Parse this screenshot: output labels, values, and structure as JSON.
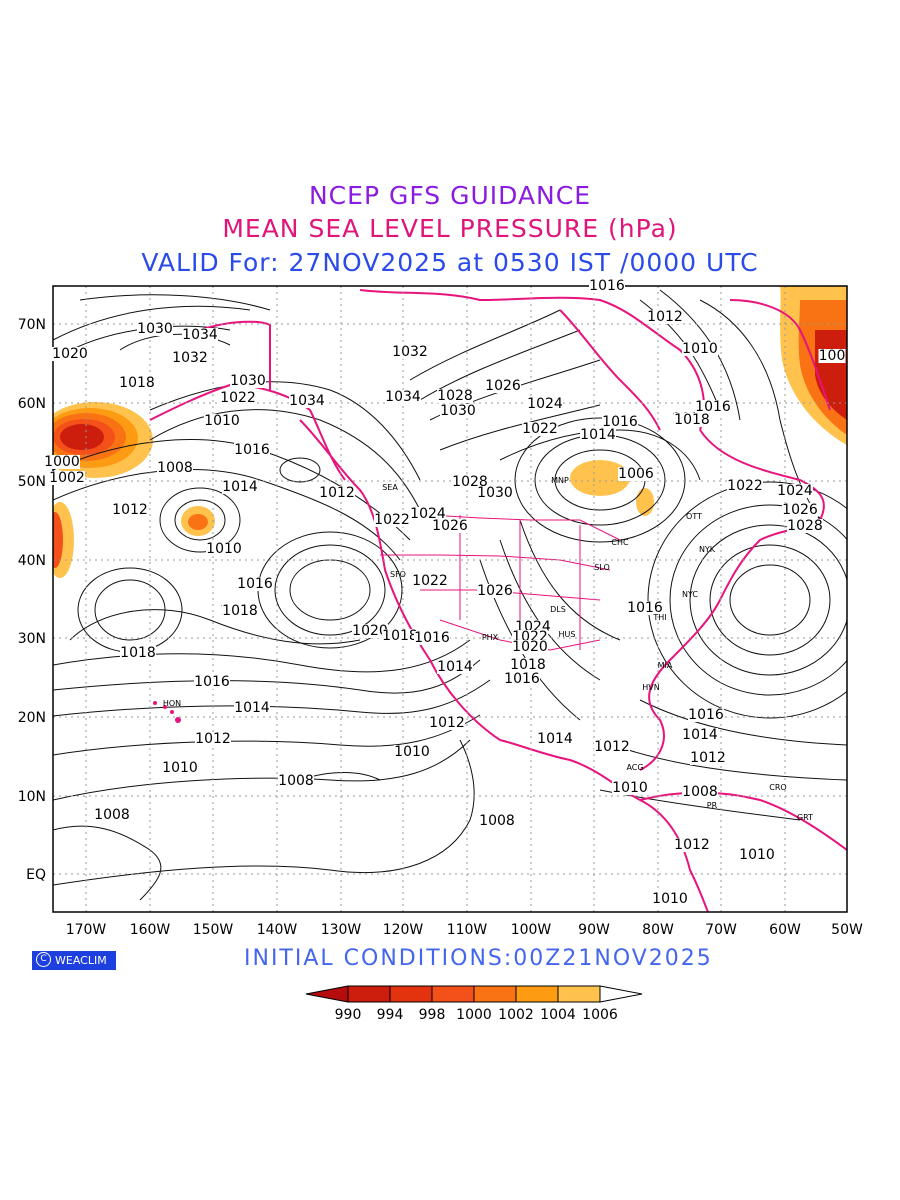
{
  "header": {
    "line1": "NCEP GFS GUIDANCE",
    "line2": "MEAN SEA LEVEL PRESSURE (hPa)",
    "line3": "VALID For: 27NOV2025 at 0530 IST /0000 UTC"
  },
  "footer": {
    "initial": "INITIAL  CONDITIONS:00Z21NOV2025",
    "logo_text": "WEACLIM",
    "logo_symbol": "C"
  },
  "map": {
    "lon_labels": [
      "170W",
      "160W",
      "150W",
      "140W",
      "130W",
      "120W",
      "110W",
      "100W",
      "90W",
      "80W",
      "70W",
      "60W",
      "50W"
    ],
    "lat_labels": [
      "70N",
      "60N",
      "50N",
      "40N",
      "30N",
      "20N",
      "10N",
      "EQ"
    ],
    "contour_labels": [
      {
        "t": "1030"
      },
      {
        "t": "1034"
      },
      {
        "t": "1032"
      },
      {
        "t": "1020"
      },
      {
        "t": "1018"
      },
      {
        "t": "1030"
      },
      {
        "t": "1022"
      },
      {
        "t": "1034"
      },
      {
        "t": "1032"
      },
      {
        "t": "1034"
      },
      {
        "t": "1028"
      },
      {
        "t": "1030"
      },
      {
        "t": "1026"
      },
      {
        "t": "1024"
      },
      {
        "t": "1022"
      },
      {
        "t": "1016"
      },
      {
        "t": "1012"
      },
      {
        "t": "1010"
      },
      {
        "t": "1014"
      },
      {
        "t": "1016"
      },
      {
        "t": "1018"
      },
      {
        "t": "1008"
      },
      {
        "t": "1016"
      },
      {
        "t": "1014"
      },
      {
        "t": "1012"
      },
      {
        "t": "1018"
      },
      {
        "t": "1028"
      },
      {
        "t": "1030"
      },
      {
        "t": "1024"
      },
      {
        "t": "1026"
      },
      {
        "t": "1022"
      },
      {
        "t": "1012"
      },
      {
        "t": "1010"
      },
      {
        "t": "1016"
      },
      {
        "t": "1018"
      },
      {
        "t": "1020"
      },
      {
        "t": "1018"
      },
      {
        "t": "1016"
      },
      {
        "t": "1014"
      },
      {
        "t": "1012"
      },
      {
        "t": "1010"
      },
      {
        "t": "1008"
      },
      {
        "t": "1022"
      },
      {
        "t": "1026"
      },
      {
        "t": "1024"
      },
      {
        "t": "1022"
      },
      {
        "t": "1020"
      },
      {
        "t": "1018"
      },
      {
        "t": "1016"
      },
      {
        "t": "1014"
      },
      {
        "t": "1012"
      },
      {
        "t": "1010"
      },
      {
        "t": "1008"
      },
      {
        "t": "1006"
      },
      {
        "t": "1022"
      },
      {
        "t": "1024"
      },
      {
        "t": "1026"
      },
      {
        "t": "1028"
      },
      {
        "t": "1016"
      },
      {
        "t": "1018"
      },
      {
        "t": "1016"
      },
      {
        "t": "1014"
      },
      {
        "t": "1012"
      },
      {
        "t": "1010"
      },
      {
        "t": "1008"
      },
      {
        "t": "1012"
      },
      {
        "t": "1010"
      },
      {
        "t": "1008"
      },
      {
        "t": "1010"
      },
      {
        "t": "1016"
      },
      {
        "t": "1012"
      },
      {
        "t": "1010"
      },
      {
        "t": "1014"
      },
      {
        "t": "1018"
      },
      {
        "t": "1016"
      },
      {
        "t": "1000"
      },
      {
        "t": "1002"
      },
      {
        "t": "1008"
      },
      {
        "t": "100"
      }
    ],
    "station_labels": [
      "HON",
      "MNP",
      "OTT",
      "CHC",
      "SLO",
      "NYK",
      "NYC",
      "DLS",
      "HUS",
      "MIA",
      "HVN",
      "THI",
      "ACG",
      "GRT",
      "CRO",
      "PR",
      "SEA",
      "SFO",
      "PHX"
    ]
  },
  "legend": {
    "values": [
      "990",
      "994",
      "998",
      "1000",
      "1002",
      "1004",
      "1006"
    ],
    "colors": [
      "#b50d0d",
      "#cc1d0d",
      "#e2320e",
      "#f4501a",
      "#f97315",
      "#fd9b12",
      "#ffc24d",
      "#ffffff"
    ]
  },
  "colors": {
    "coast": "#e8137c",
    "title1": "#8a1be0",
    "title2": "#e0157a",
    "title3": "#2b4be8",
    "footer": "#4466ee"
  }
}
